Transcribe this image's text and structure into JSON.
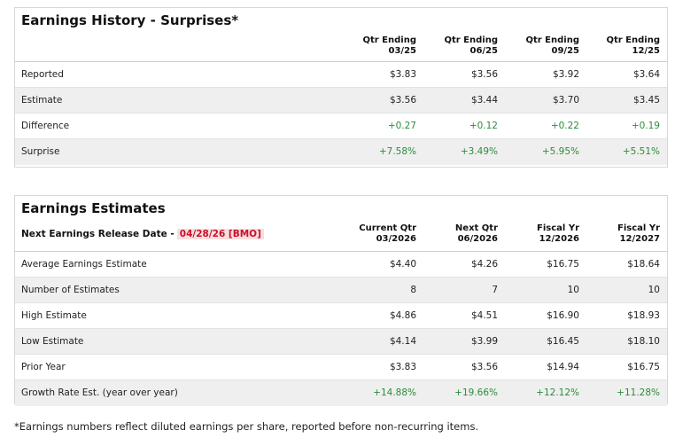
{
  "history": {
    "title": "Earnings History - Surprises*",
    "columns": [
      [
        "Qtr Ending",
        "03/25"
      ],
      [
        "Qtr Ending",
        "06/25"
      ],
      [
        "Qtr Ending",
        "09/25"
      ],
      [
        "Qtr Ending",
        "12/25"
      ]
    ],
    "rows": [
      {
        "label": "Reported",
        "values": [
          "$3.83",
          "$3.56",
          "$3.92",
          "$3.64"
        ]
      },
      {
        "label": "Estimate",
        "values": [
          "$3.56",
          "$3.44",
          "$3.70",
          "$3.45"
        ]
      },
      {
        "label": "Difference",
        "values": [
          "+0.27",
          "+0.12",
          "+0.22",
          "+0.19"
        ]
      },
      {
        "label": "Surprise",
        "values": [
          "+7.58%",
          "+3.49%",
          "+5.95%",
          "+5.51%"
        ]
      }
    ]
  },
  "estimates": {
    "title": "Earnings Estimates",
    "release_label": "Next Earnings Release Date -",
    "release_date": "04/28/26 [BMO]",
    "columns": [
      [
        "Current Qtr",
        "03/2026"
      ],
      [
        "Next Qtr",
        "06/2026"
      ],
      [
        "Fiscal Yr",
        "12/2026"
      ],
      [
        "Fiscal Yr",
        "12/2027"
      ]
    ],
    "rows": [
      {
        "label": "Average Earnings Estimate",
        "values": [
          "$4.40",
          "$4.26",
          "$16.75",
          "$18.64"
        ]
      },
      {
        "label": "Number of Estimates",
        "values": [
          "8",
          "7",
          "10",
          "10"
        ]
      },
      {
        "label": "High Estimate",
        "values": [
          "$4.86",
          "$4.51",
          "$16.90",
          "$18.93"
        ]
      },
      {
        "label": "Low Estimate",
        "values": [
          "$4.14",
          "$3.99",
          "$16.45",
          "$18.10"
        ]
      },
      {
        "label": "Prior Year",
        "values": [
          "$3.83",
          "$3.56",
          "$14.94",
          "$16.75"
        ]
      },
      {
        "label": "Growth Rate Est. (year over year)",
        "values": [
          "+14.88%",
          "+19.66%",
          "+12.12%",
          "+11.28%"
        ]
      }
    ]
  },
  "footnote": "*Earnings numbers reflect diluted earnings per share, reported before non-recurring items.",
  "colors": {
    "positive": "#2e8b3a",
    "release_date_text": "#c8102e",
    "release_date_bg": "#f8dede",
    "alt_row_bg": "#efefef"
  }
}
